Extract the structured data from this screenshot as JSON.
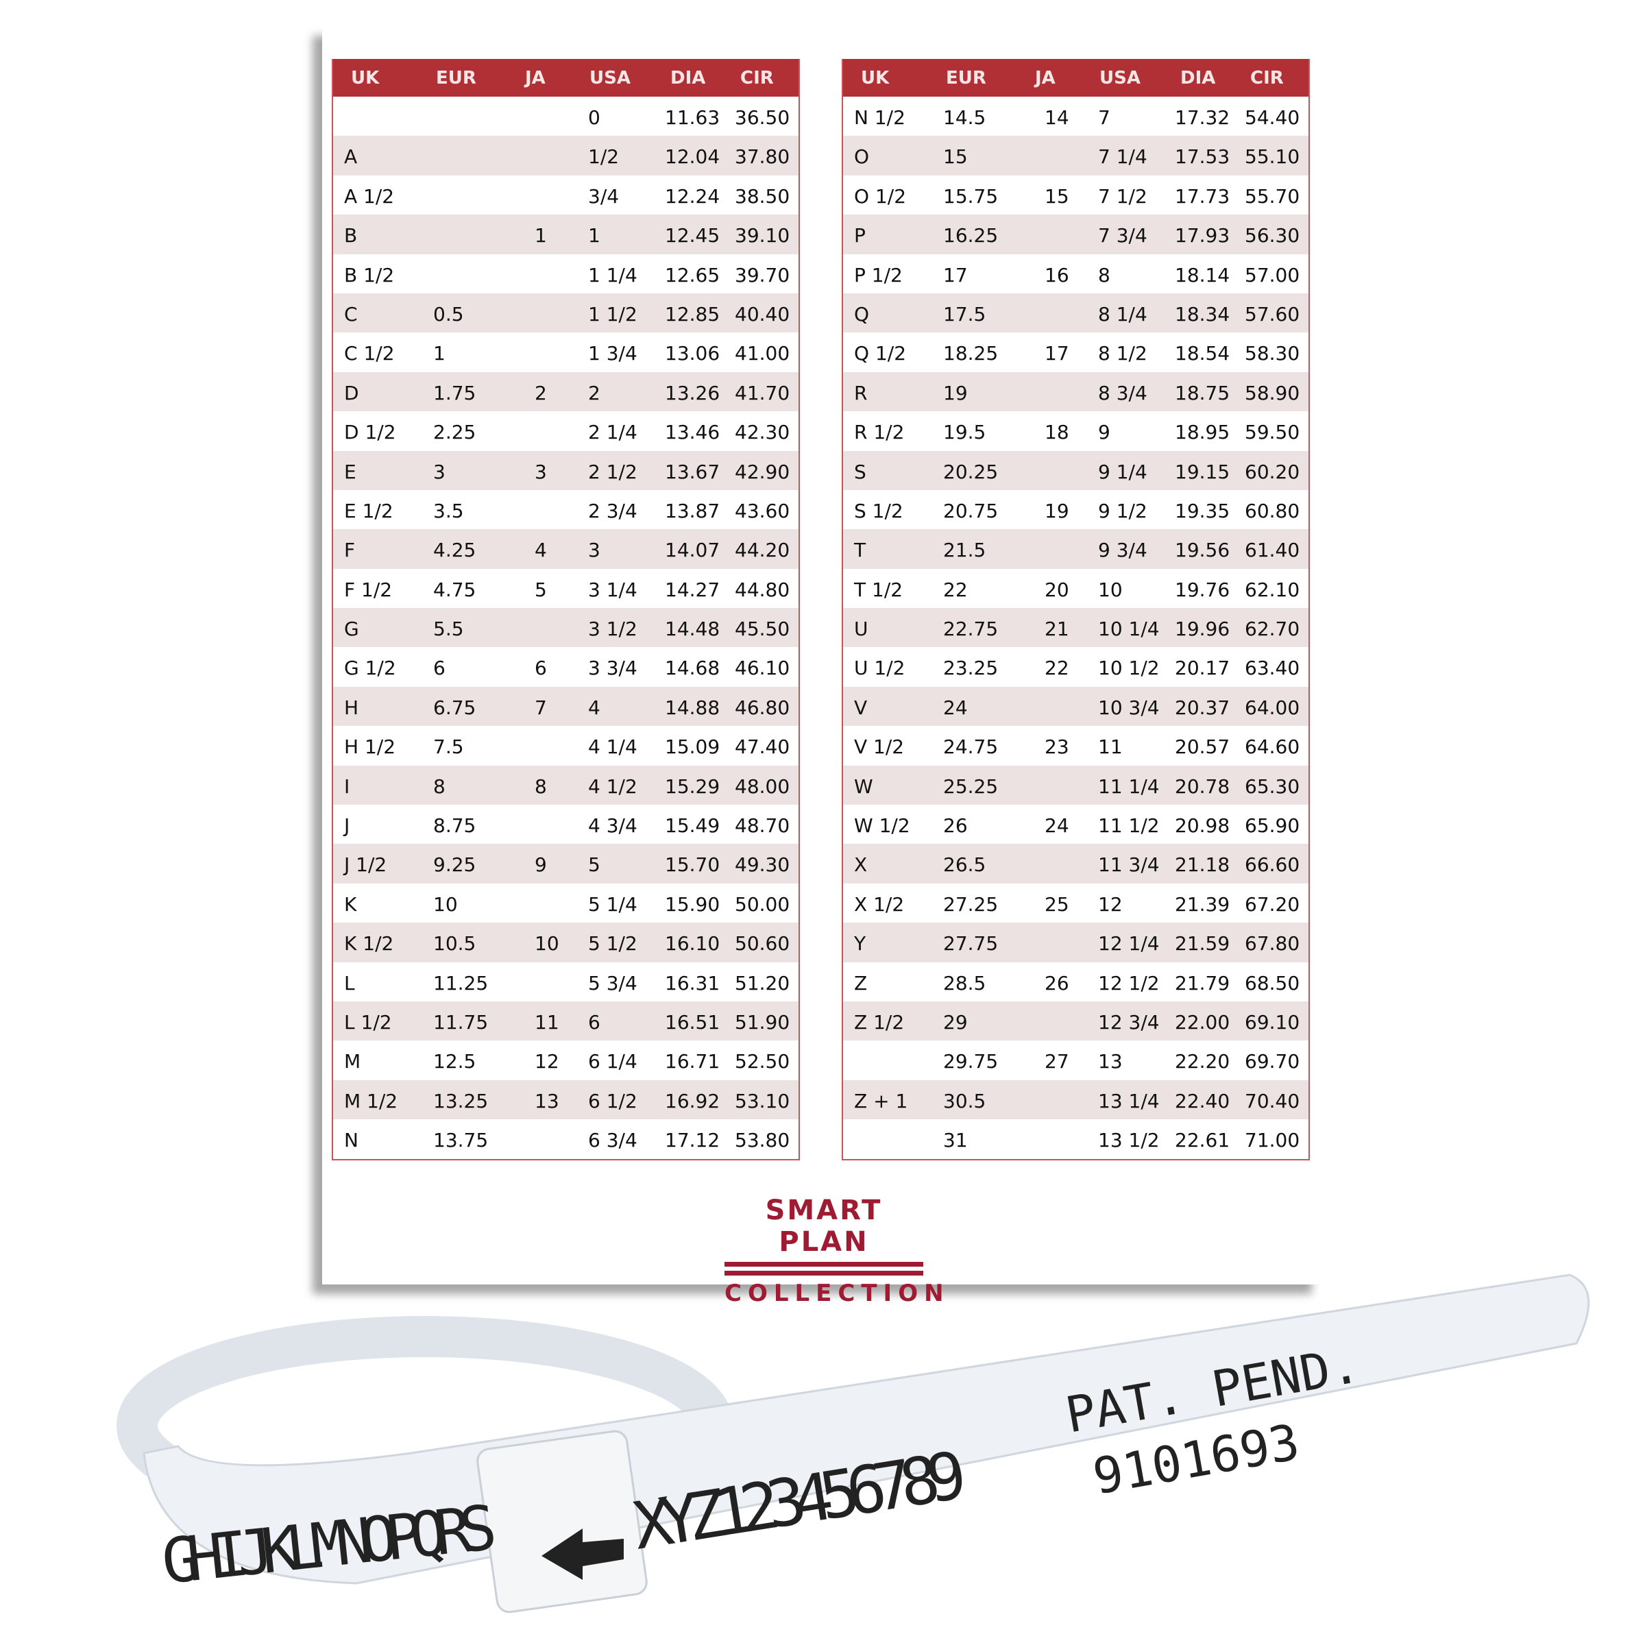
{
  "colors": {
    "header": "#b03036",
    "stripe": "#ece2e2",
    "brand": "#9e1b32"
  },
  "columns": [
    "UK",
    "EUR",
    "JA",
    "USA",
    "DIA",
    "CIR"
  ],
  "left_table": [
    [
      "",
      "",
      "",
      "0",
      "11.63",
      "36.50"
    ],
    [
      "A",
      "",
      "",
      "1/2",
      "12.04",
      "37.80"
    ],
    [
      "A 1/2",
      "",
      "",
      "3/4",
      "12.24",
      "38.50"
    ],
    [
      "B",
      "",
      "1",
      "1",
      "12.45",
      "39.10"
    ],
    [
      "B 1/2",
      "",
      "",
      "1 1/4",
      "12.65",
      "39.70"
    ],
    [
      "C",
      "0.5",
      "",
      "1 1/2",
      "12.85",
      "40.40"
    ],
    [
      "C 1/2",
      "1",
      "",
      "1 3/4",
      "13.06",
      "41.00"
    ],
    [
      "D",
      "1.75",
      "2",
      "2",
      "13.26",
      "41.70"
    ],
    [
      "D 1/2",
      "2.25",
      "",
      "2 1/4",
      "13.46",
      "42.30"
    ],
    [
      "E",
      "3",
      "3",
      "2 1/2",
      "13.67",
      "42.90"
    ],
    [
      "E 1/2",
      "3.5",
      "",
      "2 3/4",
      "13.87",
      "43.60"
    ],
    [
      "F",
      "4.25",
      "4",
      "3",
      "14.07",
      "44.20"
    ],
    [
      "F 1/2",
      "4.75",
      "5",
      "3 1/4",
      "14.27",
      "44.80"
    ],
    [
      "G",
      "5.5",
      "",
      "3 1/2",
      "14.48",
      "45.50"
    ],
    [
      "G 1/2",
      "6",
      "6",
      "3 3/4",
      "14.68",
      "46.10"
    ],
    [
      "H",
      "6.75",
      "7",
      "4",
      "14.88",
      "46.80"
    ],
    [
      "H 1/2",
      "7.5",
      "",
      "4 1/4",
      "15.09",
      "47.40"
    ],
    [
      "I",
      "8",
      "8",
      "4 1/2",
      "15.29",
      "48.00"
    ],
    [
      "J",
      "8.75",
      "",
      "4 3/4",
      "15.49",
      "48.70"
    ],
    [
      "J 1/2",
      "9.25",
      "9",
      "5",
      "15.70",
      "49.30"
    ],
    [
      "K",
      "10",
      "",
      "5 1/4",
      "15.90",
      "50.00"
    ],
    [
      "K 1/2",
      "10.5",
      "10",
      "5 1/2",
      "16.10",
      "50.60"
    ],
    [
      "L",
      "11.25",
      "",
      "5 3/4",
      "16.31",
      "51.20"
    ],
    [
      "L 1/2",
      "11.75",
      "11",
      "6",
      "16.51",
      "51.90"
    ],
    [
      "M",
      "12.5",
      "12",
      "6 1/4",
      "16.71",
      "52.50"
    ],
    [
      "M 1/2",
      "13.25",
      "13",
      "6 1/2",
      "16.92",
      "53.10"
    ],
    [
      "N",
      "13.75",
      "",
      "6 3/4",
      "17.12",
      "53.80"
    ]
  ],
  "right_table": [
    [
      "N 1/2",
      "14.5",
      "14",
      "7",
      "17.32",
      "54.40"
    ],
    [
      "O",
      "15",
      "",
      "7 1/4",
      "17.53",
      "55.10"
    ],
    [
      "O 1/2",
      "15.75",
      "15",
      "7 1/2",
      "17.73",
      "55.70"
    ],
    [
      "P",
      "16.25",
      "",
      "7 3/4",
      "17.93",
      "56.30"
    ],
    [
      "P 1/2",
      "17",
      "16",
      "8",
      "18.14",
      "57.00"
    ],
    [
      "Q",
      "17.5",
      "",
      "8 1/4",
      "18.34",
      "57.60"
    ],
    [
      "Q 1/2",
      "18.25",
      "17",
      "8 1/2",
      "18.54",
      "58.30"
    ],
    [
      "R",
      "19",
      "",
      "8 3/4",
      "18.75",
      "58.90"
    ],
    [
      "R 1/2",
      "19.5",
      "18",
      "9",
      "18.95",
      "59.50"
    ],
    [
      "S",
      "20.25",
      "",
      "9 1/4",
      "19.15",
      "60.20"
    ],
    [
      "S 1/2",
      "20.75",
      "19",
      "9 1/2",
      "19.35",
      "60.80"
    ],
    [
      "T",
      "21.5",
      "",
      "9 3/4",
      "19.56",
      "61.40"
    ],
    [
      "T 1/2",
      "22",
      "20",
      "10",
      "19.76",
      "62.10"
    ],
    [
      "U",
      "22.75",
      "21",
      "10 1/4",
      "19.96",
      "62.70"
    ],
    [
      "U 1/2",
      "23.25",
      "22",
      "10 1/2",
      "20.17",
      "63.40"
    ],
    [
      "V",
      "24",
      "",
      "10 3/4",
      "20.37",
      "64.00"
    ],
    [
      "V 1/2",
      "24.75",
      "23",
      "11",
      "20.57",
      "64.60"
    ],
    [
      "W",
      "25.25",
      "",
      "11 1/4",
      "20.78",
      "65.30"
    ],
    [
      "W 1/2",
      "26",
      "24",
      "11 1/2",
      "20.98",
      "65.90"
    ],
    [
      "X",
      "26.5",
      "",
      "11 3/4",
      "21.18",
      "66.60"
    ],
    [
      "X 1/2",
      "27.25",
      "25",
      "12",
      "21.39",
      "67.20"
    ],
    [
      "Y",
      "27.75",
      "",
      "12 1/4",
      "21.59",
      "67.80"
    ],
    [
      "Z",
      "28.5",
      "26",
      "12 1/2",
      "21.79",
      "68.50"
    ],
    [
      "Z 1/2",
      "29",
      "",
      "12 3/4",
      "22.00",
      "69.10"
    ],
    [
      "",
      "29.75",
      "27",
      "13",
      "22.20",
      "69.70"
    ],
    [
      "Z + 1",
      "30.5",
      "",
      "13 1/4",
      "22.40",
      "70.40"
    ],
    [
      "",
      "31",
      "",
      "13 1/2",
      "22.61",
      "71.00"
    ]
  ],
  "logo": {
    "line1": "SMART PLAN",
    "line2": "COLLECTION"
  },
  "ring_sizer": {
    "letters_left": "GHIJKLMNOPQRS",
    "letters_right": "XYZ123456789",
    "pat": "PAT. PEND.",
    "number": "9101693"
  }
}
